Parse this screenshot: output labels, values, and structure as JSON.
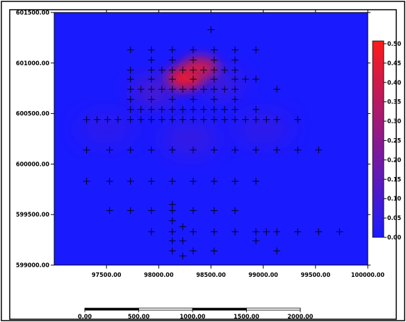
{
  "chart_data": {
    "type": "heatmap",
    "title": "",
    "xlabel": "",
    "ylabel": "",
    "xlim": [
      97000,
      100000
    ],
    "ylim": [
      599000,
      601500
    ],
    "x_ticks": [
      "97500.00",
      "98000.00",
      "98500.00",
      "99000.00",
      "99500.00",
      "100000.00"
    ],
    "y_ticks": [
      "599000.00",
      "599500.00",
      "600000.00",
      "600500.00",
      "601000.00",
      "601500.00"
    ],
    "colorbar": {
      "min": 0.0,
      "max": 0.5,
      "ticks": [
        "0.00",
        "0.05",
        "0.10",
        "0.15",
        "0.20",
        "0.25",
        "0.30",
        "0.35",
        "0.40",
        "0.45",
        "0.50"
      ],
      "colors": {
        "low": "#1a1aff",
        "high": "#ff1a1a"
      }
    },
    "hotspots": [
      {
        "x": 98250,
        "y": 600850,
        "value": 0.5
      },
      {
        "x": 98400,
        "y": 600950,
        "value": 0.42
      },
      {
        "x": 97950,
        "y": 600720,
        "value": 0.3
      },
      {
        "x": 98600,
        "y": 600800,
        "value": 0.2
      },
      {
        "x": 98300,
        "y": 600250,
        "value": 0.15
      },
      {
        "x": 99000,
        "y": 600350,
        "value": 0.12
      },
      {
        "x": 97500,
        "y": 600350,
        "value": 0.1
      }
    ],
    "sample_points": [
      [
        98500,
        601330
      ],
      [
        97730,
        601130
      ],
      [
        97930,
        601130
      ],
      [
        98130,
        601130
      ],
      [
        98330,
        601130
      ],
      [
        98530,
        601130
      ],
      [
        98730,
        601130
      ],
      [
        98930,
        601130
      ],
      [
        97930,
        601030
      ],
      [
        98130,
        601030
      ],
      [
        98330,
        601030
      ],
      [
        98530,
        601030
      ],
      [
        98730,
        601030
      ],
      [
        97730,
        600930
      ],
      [
        97930,
        600930
      ],
      [
        98030,
        600930
      ],
      [
        98130,
        600930
      ],
      [
        98230,
        600930
      ],
      [
        98330,
        600930
      ],
      [
        98430,
        600930
      ],
      [
        98530,
        600930
      ],
      [
        98630,
        600930
      ],
      [
        98730,
        600930
      ],
      [
        97730,
        600840
      ],
      [
        97930,
        600840
      ],
      [
        98130,
        600840
      ],
      [
        98330,
        600840
      ],
      [
        98530,
        600840
      ],
      [
        98730,
        600840
      ],
      [
        98830,
        600840
      ],
      [
        98930,
        600840
      ],
      [
        97730,
        600740
      ],
      [
        97830,
        600740
      ],
      [
        97930,
        600740
      ],
      [
        98030,
        600740
      ],
      [
        98130,
        600740
      ],
      [
        98230,
        600740
      ],
      [
        98330,
        600740
      ],
      [
        98430,
        600740
      ],
      [
        98530,
        600740
      ],
      [
        98630,
        600740
      ],
      [
        98730,
        600740
      ],
      [
        99130,
        600740
      ],
      [
        97730,
        600640
      ],
      [
        97930,
        600640
      ],
      [
        98130,
        600640
      ],
      [
        98330,
        600640
      ],
      [
        98530,
        600640
      ],
      [
        98730,
        600640
      ],
      [
        97730,
        600540
      ],
      [
        97830,
        600540
      ],
      [
        97930,
        600540
      ],
      [
        98030,
        600540
      ],
      [
        98130,
        600540
      ],
      [
        98230,
        600540
      ],
      [
        98330,
        600540
      ],
      [
        98430,
        600540
      ],
      [
        98530,
        600540
      ],
      [
        98630,
        600540
      ],
      [
        98730,
        600540
      ],
      [
        98930,
        600540
      ],
      [
        97310,
        600440
      ],
      [
        97410,
        600440
      ],
      [
        97510,
        600440
      ],
      [
        97610,
        600440
      ],
      [
        97730,
        600440
      ],
      [
        97830,
        600440
      ],
      [
        97930,
        600440
      ],
      [
        98030,
        600440
      ],
      [
        98130,
        600440
      ],
      [
        98230,
        600440
      ],
      [
        98330,
        600440
      ],
      [
        98430,
        600440
      ],
      [
        98530,
        600440
      ],
      [
        98630,
        600440
      ],
      [
        98730,
        600440
      ],
      [
        98830,
        600440
      ],
      [
        98930,
        600440
      ],
      [
        99030,
        600440
      ],
      [
        99130,
        600440
      ],
      [
        99330,
        600440
      ],
      [
        97310,
        600140
      ],
      [
        97530,
        600140
      ],
      [
        97730,
        600140
      ],
      [
        97930,
        600140
      ],
      [
        98130,
        600140
      ],
      [
        98330,
        600140
      ],
      [
        98530,
        600140
      ],
      [
        98730,
        600140
      ],
      [
        98930,
        600140
      ],
      [
        99130,
        600140
      ],
      [
        99330,
        600140
      ],
      [
        99530,
        600140
      ],
      [
        97310,
        599830
      ],
      [
        97530,
        599830
      ],
      [
        97730,
        599830
      ],
      [
        97930,
        599830
      ],
      [
        98130,
        599830
      ],
      [
        98330,
        599830
      ],
      [
        98530,
        599830
      ],
      [
        98730,
        599830
      ],
      [
        98930,
        599830
      ],
      [
        98130,
        599600
      ],
      [
        97530,
        599540
      ],
      [
        97730,
        599540
      ],
      [
        97930,
        599540
      ],
      [
        98130,
        599540
      ],
      [
        98330,
        599540
      ],
      [
        98530,
        599540
      ],
      [
        98730,
        599540
      ],
      [
        98130,
        599440
      ],
      [
        97930,
        599330
      ],
      [
        98130,
        599330
      ],
      [
        98230,
        599380
      ],
      [
        98330,
        599330
      ],
      [
        98530,
        599330
      ],
      [
        98730,
        599330
      ],
      [
        98930,
        599330
      ],
      [
        99030,
        599330
      ],
      [
        99130,
        599330
      ],
      [
        99330,
        599330
      ],
      [
        99530,
        599330
      ],
      [
        99730,
        599330
      ],
      [
        98130,
        599240
      ],
      [
        98230,
        599240
      ],
      [
        98930,
        599240
      ],
      [
        98130,
        599140
      ],
      [
        98330,
        599140
      ],
      [
        98530,
        599140
      ],
      [
        99130,
        599140
      ],
      [
        98230,
        599090
      ],
      [
        98200,
        598960
      ]
    ]
  },
  "scale_bar": {
    "labels": [
      "0.00",
      "500.00",
      "1000.00",
      "1500.00",
      "2000.00"
    ]
  }
}
